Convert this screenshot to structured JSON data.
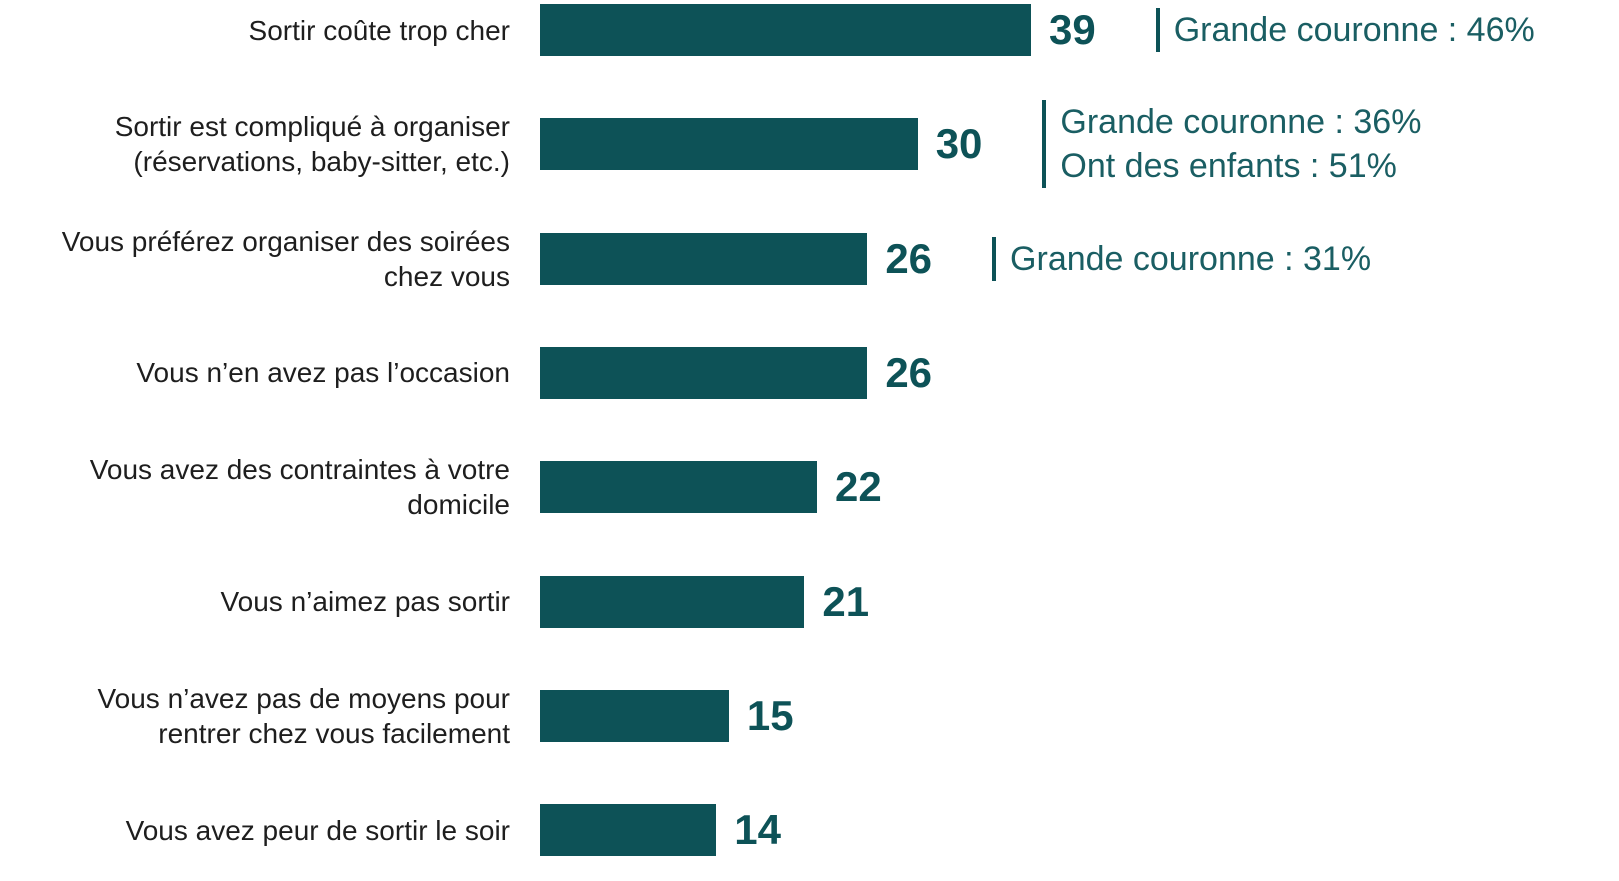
{
  "chart_data": {
    "type": "bar",
    "orientation": "horizontal",
    "color": "#0d5257",
    "categories": [
      "Sortir coûte trop cher",
      "Sortir est compliqué à organiser\n(réservations, baby-sitter, etc.)",
      "Vous préférez organiser des soirées\nchez vous",
      "Vous n’en avez pas l’occasion",
      "Vous avez des contraintes à votre\ndomicile",
      "Vous n’aimez pas sortir",
      "Vous n’avez pas de moyens pour\nrentrer chez vous facilement",
      "Vous avez peur de sortir le soir"
    ],
    "values": [
      39,
      30,
      26,
      26,
      22,
      21,
      15,
      14
    ],
    "annotations": [
      [
        "Grande couronne : 46%"
      ],
      [
        "Grande couronne : 36%",
        "Ont des enfants : 51%"
      ],
      [
        "Grande couronne : 31%"
      ],
      null,
      null,
      null,
      null,
      null
    ]
  }
}
